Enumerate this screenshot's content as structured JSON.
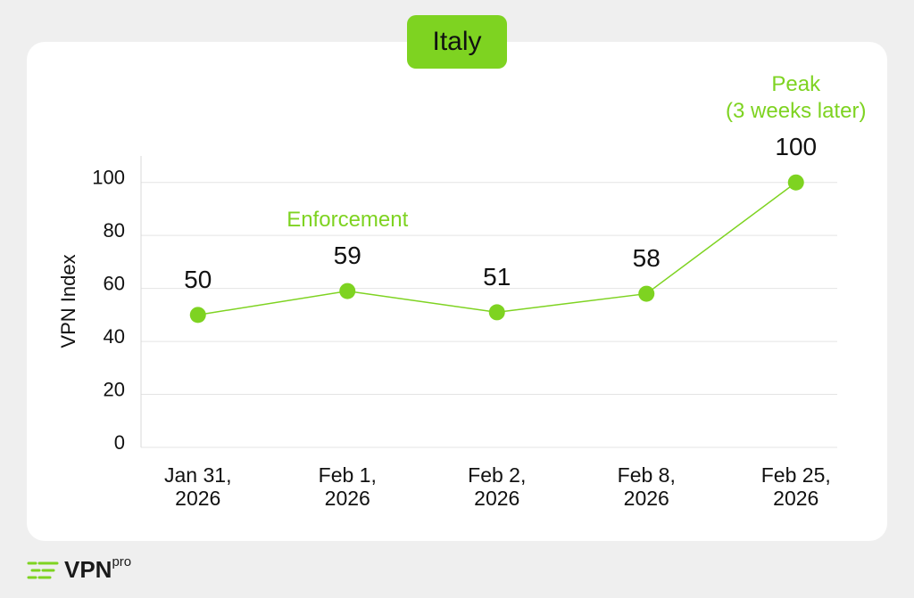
{
  "chart_data": {
    "type": "line",
    "title": "Italy",
    "categories": [
      "Jan 31, 2026",
      "Feb 1, 2026",
      "Feb 2, 2026",
      "Feb 8, 2026",
      "Feb 25, 2026"
    ],
    "series": [
      {
        "name": "VPN Index",
        "color": "#7ed321",
        "values": [
          50,
          59,
          51,
          58,
          100
        ]
      }
    ],
    "y_label": "VPN Index",
    "ylim": [
      0,
      110
    ],
    "yticks": [
      0,
      20,
      40,
      60,
      80,
      100
    ],
    "grid": true,
    "annotations": [
      {
        "text": "Enforcement",
        "category": "Feb 1, 2026"
      },
      {
        "text": "Peak\n(3 weeks later)",
        "category": "Feb 25, 2026"
      }
    ]
  },
  "logo": {
    "name": "VPN",
    "suffix": "pro"
  }
}
